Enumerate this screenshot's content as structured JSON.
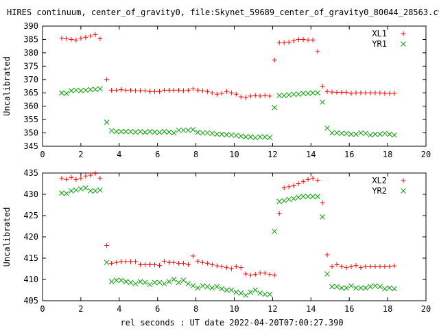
{
  "title": "HIRES continuum, center_of_gravity0, file:Skynet_59689_center_of_gravity0_80044_28563.cyb.",
  "xlabel": "rel seconds : UT date 2022-04-20T07:00:27.390",
  "chart_data": [
    {
      "type": "scatter",
      "ylabel": "Uncalibrated",
      "xlim": [
        0,
        20
      ],
      "ylim": [
        345,
        390
      ],
      "xticks": [
        0,
        2,
        4,
        6,
        8,
        10,
        12,
        14,
        16,
        18,
        20
      ],
      "yticks": [
        345,
        350,
        355,
        360,
        365,
        370,
        375,
        380,
        385,
        390
      ],
      "legend_position": "top-right",
      "series": [
        {
          "name": "XL1",
          "marker": "plus",
          "color": "#ff0000",
          "x": [
            1.0,
            1.25,
            1.5,
            1.75,
            2.0,
            2.25,
            2.5,
            2.75,
            3.0,
            3.35,
            3.6,
            3.85,
            4.1,
            4.35,
            4.6,
            4.85,
            5.1,
            5.35,
            5.6,
            5.85,
            6.1,
            6.35,
            6.6,
            6.85,
            7.1,
            7.35,
            7.6,
            7.85,
            8.1,
            8.35,
            8.6,
            8.85,
            9.1,
            9.35,
            9.6,
            9.85,
            10.1,
            10.35,
            10.6,
            10.85,
            11.1,
            11.35,
            11.6,
            11.85,
            12.1,
            12.35,
            12.6,
            12.85,
            13.1,
            13.35,
            13.6,
            13.85,
            14.1,
            14.35,
            14.6,
            14.85,
            15.1,
            15.35,
            15.6,
            15.85,
            16.1,
            16.35,
            16.6,
            16.85,
            17.1,
            17.35,
            17.6,
            17.85,
            18.1,
            18.35
          ],
          "y": [
            385.5,
            385.3,
            385.0,
            384.8,
            385.5,
            385.8,
            386.3,
            386.8,
            385.3,
            370.0,
            366.0,
            366.0,
            366.2,
            366.0,
            366.0,
            365.8,
            365.8,
            365.8,
            365.5,
            365.5,
            365.5,
            366.0,
            366.0,
            366.0,
            366.0,
            365.8,
            366.0,
            366.5,
            366.0,
            365.8,
            365.5,
            365.0,
            364.5,
            364.8,
            365.5,
            365.0,
            364.5,
            363.5,
            363.2,
            363.8,
            364.0,
            363.8,
            364.0,
            363.8,
            377.3,
            383.8,
            383.8,
            384.0,
            384.5,
            385.0,
            385.0,
            384.8,
            384.8,
            380.5,
            367.5,
            365.5,
            365.3,
            365.2,
            365.2,
            365.2,
            364.8,
            365.0,
            365.0,
            365.0,
            365.0,
            365.0,
            365.0,
            364.8,
            364.8,
            364.8
          ]
        },
        {
          "name": "YR1",
          "marker": "cross",
          "color": "#00a000",
          "x": [
            1.0,
            1.25,
            1.5,
            1.75,
            2.0,
            2.25,
            2.5,
            2.75,
            3.0,
            3.35,
            3.6,
            3.85,
            4.1,
            4.35,
            4.6,
            4.85,
            5.1,
            5.35,
            5.6,
            5.85,
            6.1,
            6.35,
            6.6,
            6.85,
            7.1,
            7.35,
            7.6,
            7.85,
            8.1,
            8.35,
            8.6,
            8.85,
            9.1,
            9.35,
            9.6,
            9.85,
            10.1,
            10.35,
            10.6,
            10.85,
            11.1,
            11.35,
            11.6,
            11.85,
            12.1,
            12.35,
            12.6,
            12.85,
            13.1,
            13.35,
            13.6,
            13.85,
            14.1,
            14.35,
            14.6,
            14.85,
            15.1,
            15.35,
            15.6,
            15.85,
            16.1,
            16.35,
            16.6,
            16.85,
            17.1,
            17.35,
            17.6,
            17.85,
            18.1,
            18.35
          ],
          "y": [
            365.0,
            364.8,
            365.8,
            366.0,
            365.8,
            366.0,
            366.2,
            366.3,
            366.5,
            354.0,
            350.8,
            350.5,
            350.5,
            350.5,
            350.5,
            350.3,
            350.5,
            350.2,
            350.5,
            350.3,
            350.2,
            350.5,
            350.3,
            350.0,
            351.0,
            351.0,
            351.0,
            351.2,
            350.2,
            350.0,
            350.0,
            349.8,
            349.5,
            349.5,
            349.3,
            349.2,
            349.0,
            348.8,
            348.5,
            348.5,
            348.2,
            348.5,
            348.5,
            348.3,
            359.5,
            364.0,
            364.0,
            364.2,
            364.5,
            364.5,
            364.8,
            364.8,
            365.0,
            365.0,
            361.5,
            351.8,
            350.0,
            350.0,
            349.8,
            349.8,
            349.5,
            349.5,
            350.0,
            349.8,
            349.2,
            349.5,
            349.5,
            349.8,
            349.5,
            349.2
          ]
        }
      ]
    },
    {
      "type": "scatter",
      "ylabel": "Uncalibrated",
      "xlim": [
        0,
        20
      ],
      "ylim": [
        405,
        435
      ],
      "xticks": [
        0,
        2,
        4,
        6,
        8,
        10,
        12,
        14,
        16,
        18,
        20
      ],
      "yticks": [
        405,
        410,
        415,
        420,
        425,
        430,
        435
      ],
      "legend_position": "top-right",
      "series": [
        {
          "name": "XL2",
          "marker": "plus",
          "color": "#ff0000",
          "x": [
            1.0,
            1.25,
            1.5,
            1.75,
            2.0,
            2.25,
            2.5,
            2.75,
            3.0,
            3.35,
            3.6,
            3.85,
            4.1,
            4.35,
            4.6,
            4.85,
            5.1,
            5.35,
            5.6,
            5.85,
            6.1,
            6.35,
            6.6,
            6.85,
            7.1,
            7.35,
            7.6,
            7.85,
            8.1,
            8.35,
            8.6,
            8.85,
            9.1,
            9.35,
            9.6,
            9.85,
            10.1,
            10.35,
            10.6,
            10.85,
            11.1,
            11.35,
            11.6,
            11.85,
            12.1,
            12.35,
            12.6,
            12.85,
            13.1,
            13.35,
            13.6,
            13.85,
            14.1,
            14.35,
            14.6,
            14.85,
            15.1,
            15.35,
            15.6,
            15.85,
            16.1,
            16.35,
            16.6,
            16.85,
            17.1,
            17.35,
            17.6,
            17.85,
            18.1,
            18.35
          ],
          "y": [
            433.8,
            433.5,
            434.0,
            433.5,
            433.8,
            434.3,
            434.5,
            434.9,
            433.8,
            418.0,
            413.8,
            414.0,
            414.2,
            414.2,
            414.2,
            414.2,
            413.5,
            413.5,
            413.5,
            413.5,
            413.3,
            414.3,
            414.0,
            414.0,
            413.8,
            413.8,
            413.5,
            415.5,
            414.3,
            414.0,
            413.8,
            413.5,
            413.2,
            413.0,
            412.8,
            412.5,
            413.0,
            412.8,
            411.3,
            411.0,
            411.2,
            411.5,
            411.5,
            411.2,
            411.0,
            425.5,
            431.5,
            431.8,
            432.0,
            432.5,
            433.0,
            433.5,
            433.8,
            433.3,
            428.0,
            415.8,
            413.0,
            413.5,
            413.0,
            412.8,
            413.0,
            413.3,
            412.8,
            413.0,
            413.0,
            413.0,
            413.0,
            413.0,
            413.0,
            413.2
          ]
        },
        {
          "name": "YR2",
          "marker": "cross",
          "color": "#00a000",
          "x": [
            1.0,
            1.25,
            1.5,
            1.75,
            2.0,
            2.25,
            2.5,
            2.75,
            3.0,
            3.35,
            3.6,
            3.85,
            4.1,
            4.35,
            4.6,
            4.85,
            5.1,
            5.35,
            5.6,
            5.85,
            6.1,
            6.35,
            6.6,
            6.85,
            7.1,
            7.35,
            7.6,
            7.85,
            8.1,
            8.35,
            8.6,
            8.85,
            9.1,
            9.35,
            9.6,
            9.85,
            10.1,
            10.35,
            10.6,
            10.85,
            11.1,
            11.35,
            11.6,
            11.85,
            12.1,
            12.35,
            12.6,
            12.85,
            13.1,
            13.35,
            13.6,
            13.85,
            14.1,
            14.35,
            14.6,
            14.85,
            15.1,
            15.35,
            15.6,
            15.85,
            16.1,
            16.35,
            16.6,
            16.85,
            17.1,
            17.35,
            17.6,
            17.85,
            18.1,
            18.35
          ],
          "y": [
            430.3,
            430.2,
            430.8,
            431.0,
            431.3,
            431.5,
            430.8,
            430.8,
            431.0,
            414.0,
            409.5,
            409.8,
            409.8,
            409.5,
            409.3,
            409.0,
            409.5,
            409.3,
            408.8,
            409.3,
            409.3,
            409.0,
            409.5,
            410.0,
            409.3,
            409.8,
            409.0,
            408.5,
            408.0,
            408.5,
            408.3,
            408.0,
            408.3,
            407.8,
            407.5,
            407.5,
            407.0,
            406.8,
            406.3,
            407.0,
            407.5,
            406.8,
            406.5,
            406.5,
            421.3,
            428.3,
            428.5,
            428.8,
            429.0,
            429.3,
            429.5,
            429.5,
            429.5,
            429.5,
            424.7,
            411.3,
            408.3,
            408.3,
            408.0,
            408.0,
            408.5,
            408.0,
            408.0,
            408.0,
            408.3,
            408.5,
            408.3,
            407.8,
            408.0,
            407.8
          ]
        }
      ]
    }
  ]
}
